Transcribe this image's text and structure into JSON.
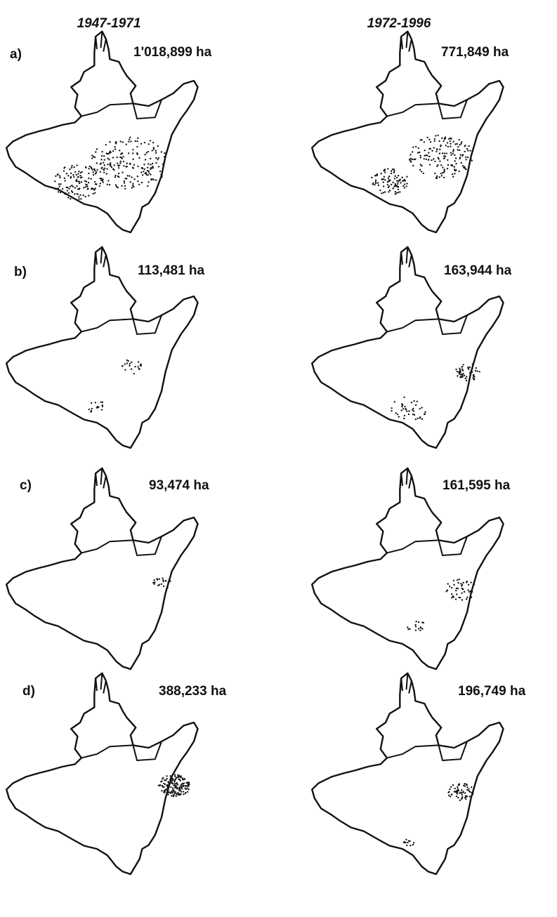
{
  "columns": [
    "1947-1971",
    "1972-1996"
  ],
  "rows": [
    {
      "label": "a)",
      "areas": [
        "1'018,899 ha",
        "771,849 ha"
      ]
    },
    {
      "label": "b)",
      "areas": [
        "113,481 ha",
        "163,944 ha"
      ]
    },
    {
      "label": "c)",
      "areas": [
        "93,474 ha",
        "161,595 ha"
      ]
    },
    {
      "label": "d)",
      "areas": [
        "388,233 ha",
        "196,749 ha"
      ]
    }
  ]
}
